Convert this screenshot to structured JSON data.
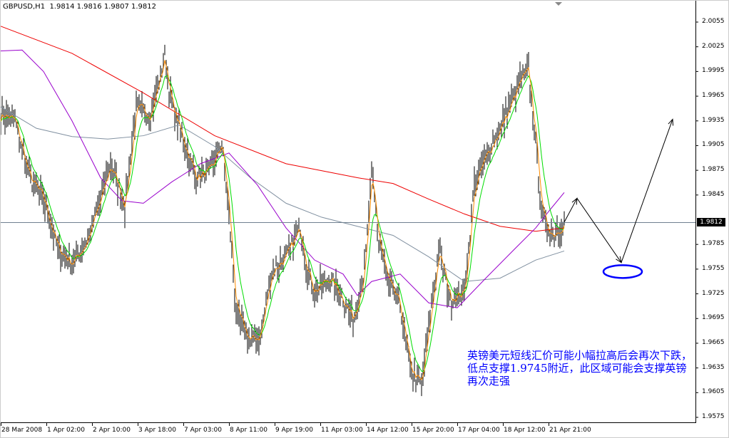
{
  "header": {
    "symbol": "GBPUSD,H1",
    "open": "1.9814",
    "high": "1.9816",
    "low": "1.9807",
    "close": "1.9812"
  },
  "note": "英镑美元短线汇价可能小幅拉高后会再次下跌，低点支撑1.9745附近，此区域可能会支撑英镑再次走强",
  "colors": {
    "bars": "#000000",
    "ma_fast": "#ff8c00",
    "ma_mid": "#00dd00",
    "ma_purple": "#9900cc",
    "ma_gray": "#8090a0",
    "ma_red": "#ee0000",
    "annotation": "#0000ff",
    "current_price_line": "#708090"
  },
  "chart_data": {
    "type": "bar",
    "subtype": "ohlc-hourly",
    "symbol": "GBPUSD",
    "timeframe": "H1",
    "ylim": [
      1.9575,
      2.0055
    ],
    "y_ticks": [
      "2.0055",
      "2.0025",
      "1.9995",
      "1.9965",
      "1.9935",
      "1.9905",
      "1.9875",
      "1.9845",
      "1.9785",
      "1.9755",
      "1.9725",
      "1.9695",
      "1.9665",
      "1.9635",
      "1.9605",
      "1.9575"
    ],
    "current_price": "1.9812",
    "x_ticks": [
      "28 Mar 2008",
      "1 Apr 02:00",
      "2 Apr 10:00",
      "3 Apr 18:00",
      "7 Apr 03:00",
      "8 Apr 11:00",
      "9 Apr 19:00",
      "11 Apr 03:00",
      "14 Apr 12:00",
      "15 Apr 20:00",
      "17 Apr 04:00",
      "18 Apr 12:00",
      "21 Apr 21:00"
    ],
    "x_tick_interval_bars": 32,
    "close_keypoints": [
      [
        2,
        1.9943
      ],
      [
        10,
        1.9935
      ],
      [
        20,
        1.9866
      ],
      [
        30,
        1.984
      ],
      [
        40,
        1.9779
      ],
      [
        50,
        1.9762
      ],
      [
        60,
        1.9788
      ],
      [
        70,
        1.984
      ],
      [
        77,
        1.9883
      ],
      [
        87,
        1.9831
      ],
      [
        95,
        1.9952
      ],
      [
        105,
        1.9943
      ],
      [
        115,
        2.0013
      ],
      [
        120,
        1.9952
      ],
      [
        130,
        1.99
      ],
      [
        137,
        1.9866
      ],
      [
        147,
        1.9874
      ],
      [
        155,
        1.9909
      ],
      [
        160,
        1.9822
      ],
      [
        165,
        1.9701
      ],
      [
        175,
        1.9667
      ],
      [
        182,
        1.9675
      ],
      [
        190,
        1.9753
      ],
      [
        200,
        1.977
      ],
      [
        210,
        1.9805
      ],
      [
        215,
        1.9753
      ],
      [
        220,
        1.9727
      ],
      [
        230,
        1.9745
      ],
      [
        240,
        1.9719
      ],
      [
        247,
        1.9693
      ],
      [
        255,
        1.9753
      ],
      [
        260,
        1.9874
      ],
      [
        265,
        1.9788
      ],
      [
        272,
        1.9736
      ],
      [
        280,
        1.971
      ],
      [
        287,
        1.9632
      ],
      [
        295,
        1.9615
      ],
      [
        302,
        1.971
      ],
      [
        307,
        1.9779
      ],
      [
        315,
        1.9719
      ],
      [
        325,
        1.9727
      ],
      [
        332,
        1.9857
      ],
      [
        340,
        1.9892
      ],
      [
        350,
        1.9926
      ],
      [
        357,
        1.9952
      ],
      [
        365,
        1.9987
      ],
      [
        370,
        1.9995
      ],
      [
        375,
        1.9909
      ],
      [
        380,
        1.9814
      ],
      [
        387,
        1.9796
      ],
      [
        395,
        1.9812
      ]
    ],
    "series": [
      {
        "color": "#ee0000",
        "points": [
          [
            0,
            2.005
          ],
          [
            50,
            2.0017
          ],
          [
            100,
            1.9969
          ],
          [
            150,
            1.9917
          ],
          [
            200,
            1.9883
          ],
          [
            250,
            1.9866
          ],
          [
            275,
            1.9859
          ],
          [
            300,
            1.984
          ],
          [
            325,
            1.9822
          ],
          [
            350,
            1.9807
          ],
          [
            375,
            1.9801
          ],
          [
            395,
            1.9805
          ]
        ]
      },
      {
        "color": "#8090a0",
        "points": [
          [
            0,
            1.9952
          ],
          [
            25,
            1.9926
          ],
          [
            50,
            1.9916
          ],
          [
            75,
            1.9913
          ],
          [
            100,
            1.9917
          ],
          [
            125,
            1.993
          ],
          [
            150,
            1.9904
          ],
          [
            175,
            1.9866
          ],
          [
            200,
            1.9835
          ],
          [
            225,
            1.9818
          ],
          [
            250,
            1.9807
          ],
          [
            275,
            1.9796
          ],
          [
            300,
            1.977
          ],
          [
            325,
            1.974
          ],
          [
            350,
            1.9744
          ],
          [
            375,
            1.9766
          ],
          [
            395,
            1.9777
          ]
        ]
      },
      {
        "color": "#9900cc",
        "points": [
          [
            0,
            2.002
          ],
          [
            15,
            2.0021
          ],
          [
            30,
            1.9995
          ],
          [
            50,
            1.9935
          ],
          [
            70,
            1.9866
          ],
          [
            85,
            1.9838
          ],
          [
            100,
            1.9835
          ],
          [
            120,
            1.9861
          ],
          [
            140,
            1.9883
          ],
          [
            160,
            1.9896
          ],
          [
            180,
            1.9857
          ],
          [
            200,
            1.9805
          ],
          [
            220,
            1.9766
          ],
          [
            240,
            1.9749
          ],
          [
            250,
            1.9723
          ],
          [
            260,
            1.974
          ],
          [
            280,
            1.9749
          ],
          [
            300,
            1.9714
          ],
          [
            320,
            1.9708
          ],
          [
            340,
            1.9744
          ],
          [
            360,
            1.9779
          ],
          [
            375,
            1.9805
          ],
          [
            385,
            1.9827
          ],
          [
            395,
            1.9848
          ]
        ]
      }
    ],
    "annotation_arrow": [
      [
        395,
        1.9812
      ],
      [
        404,
        1.9841
      ],
      [
        435,
        1.9763
      ],
      [
        471,
        1.9937
      ]
    ],
    "annotation_ellipse_center": [
      436,
      1.9752
    ]
  }
}
